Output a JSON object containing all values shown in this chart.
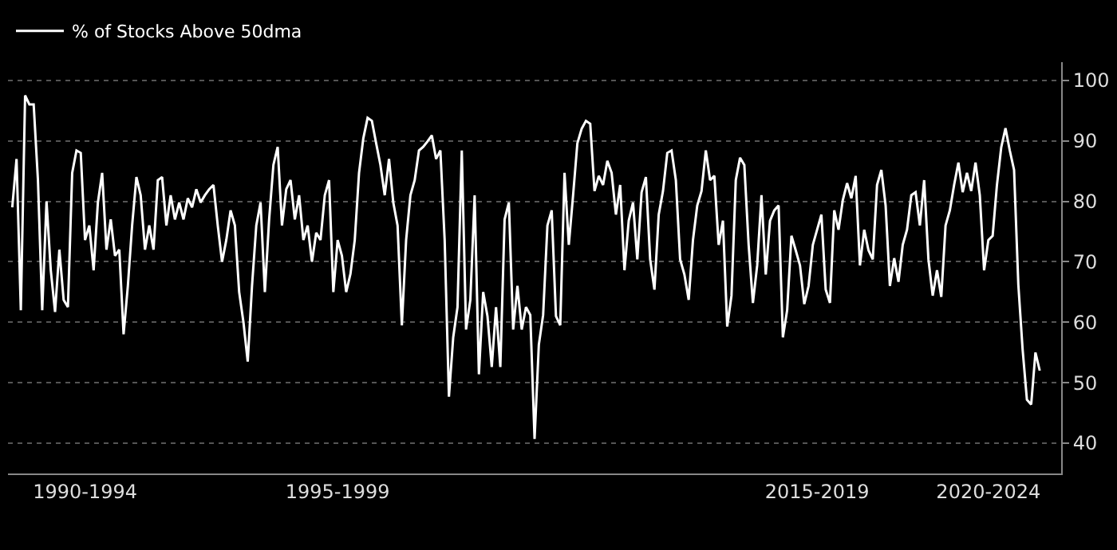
{
  "chart_data": {
    "type": "line",
    "legend": "top left",
    "grid": "y",
    "ylim": [
      35,
      103
    ],
    "yticks": [
      40,
      50,
      60,
      70,
      80,
      90,
      100
    ],
    "categories": [
      null,
      null,
      null,
      null,
      null,
      null,
      null,
      null,
      null,
      null,
      null,
      null,
      null,
      null,
      null,
      null,
      null,
      "1990-1994",
      null,
      null,
      null,
      null,
      null,
      null,
      null,
      null,
      null,
      null,
      null,
      null,
      null,
      null,
      null,
      null,
      null,
      null,
      null,
      null,
      null,
      null,
      null,
      null,
      null,
      null,
      null,
      null,
      null,
      null,
      null,
      null,
      null,
      null,
      null,
      null,
      null,
      null,
      null,
      null,
      null,
      null,
      null,
      null,
      null,
      null,
      null,
      null,
      null,
      null,
      null,
      null,
      null,
      null,
      null,
      null,
      null,
      null,
      "1995-1999",
      null,
      null,
      null,
      null,
      null,
      null,
      null,
      null,
      null,
      null,
      null,
      null,
      null,
      null,
      null,
      null,
      null,
      null,
      null,
      null,
      null,
      null,
      null,
      null,
      null,
      null,
      null,
      null,
      null,
      null,
      null,
      null,
      null,
      null,
      null,
      null,
      null,
      null,
      null,
      null,
      null,
      null,
      null,
      null,
      null,
      null,
      null,
      null,
      null,
      null,
      null,
      null,
      null,
      null,
      null,
      null,
      null,
      null,
      null,
      null,
      null,
      null,
      null,
      null,
      null,
      null,
      null,
      null,
      null,
      null,
      null,
      null,
      null,
      null,
      null,
      null,
      null,
      null,
      null,
      null,
      null,
      null,
      null,
      null,
      null,
      null,
      null,
      null,
      null,
      null,
      null,
      null,
      null,
      null,
      null,
      null,
      null,
      null,
      null,
      null,
      null,
      null,
      null,
      null,
      null,
      null,
      null,
      null,
      null,
      null,
      null,
      "2015-2019",
      null,
      null,
      null,
      null,
      null,
      null,
      null,
      null,
      null,
      null,
      null,
      null,
      null,
      null,
      null,
      null,
      null,
      null,
      null,
      null,
      null,
      null,
      null,
      null,
      null,
      null,
      null,
      null,
      null,
      null,
      null,
      null,
      null,
      null,
      null,
      null,
      null,
      null,
      null,
      "2020-2024",
      null,
      null,
      null,
      null,
      null,
      null,
      null,
      null,
      null,
      null,
      null,
      null
    ],
    "series": [
      {
        "name": "% of Stocks Above 50dma",
        "color": "#ffffff",
        "values": [
          79,
          87,
          62,
          97.5,
          96,
          96,
          83.5,
          62,
          80,
          68.6,
          61.7,
          72,
          63.7,
          62.5,
          84.7,
          88.4,
          88,
          73.6,
          76,
          68.6,
          79.8,
          84.7,
          72,
          77,
          71,
          72,
          58,
          66,
          76,
          84,
          81,
          72,
          76,
          72,
          83.5,
          84,
          76,
          81,
          77,
          79.8,
          77,
          80.5,
          79,
          82,
          79.8,
          81,
          82,
          82.7,
          76,
          70,
          73.6,
          78.5,
          76,
          65,
          60,
          53.5,
          66,
          76,
          79.8,
          65,
          77,
          86,
          89,
          76,
          82,
          83.5,
          77,
          81,
          73.6,
          76,
          70,
          74.8,
          73.6,
          81,
          83.5,
          65,
          73.6,
          71,
          65,
          68,
          73.6,
          84.7,
          90.4,
          93.8,
          93.3,
          89.6,
          86,
          81,
          87,
          79.8,
          76,
          59.5,
          73.6,
          81,
          83.5,
          88.4,
          89,
          89.9,
          90.9,
          87,
          88.4,
          73.6,
          47.7,
          57.5,
          62.5,
          88.4,
          58.8,
          63.7,
          81,
          51.4,
          65,
          61,
          52.6,
          62.5,
          52.6,
          77,
          79.8,
          58.8,
          66,
          58.8,
          62.5,
          61.2,
          40.7,
          56.3,
          61.2,
          76,
          78.5,
          61,
          59.5,
          84.7,
          72.8,
          81,
          89.6,
          92,
          93.3,
          92.8,
          81.7,
          84.2,
          82.7,
          86.7,
          84.7,
          77.8,
          82.7,
          68.6,
          76.8,
          79.8,
          70.4,
          81.5,
          84,
          70.4,
          65.4,
          77.8,
          81.7,
          88,
          88.4,
          83.5,
          70.4,
          67.9,
          63.7,
          73.6,
          79.3,
          81.7,
          88.4,
          83.5,
          84.2,
          72.8,
          76.8,
          59.3,
          64.4,
          83.5,
          87.2,
          86,
          72.8,
          63.2,
          69.4,
          81,
          67.9,
          76.8,
          78.5,
          79.3,
          57.5,
          62,
          74.3,
          71.9,
          69.4,
          63,
          66,
          72.8,
          75.3,
          77.8,
          65.4,
          63.2,
          78.5,
          75.3,
          80.2,
          83,
          80.5,
          84.2,
          69.4,
          75.3,
          71.9,
          70.4,
          82.7,
          85.2,
          79.3,
          66,
          70.6,
          66.7,
          72.8,
          75.3,
          81,
          81.5,
          76,
          83.5,
          70.4,
          64.4,
          68.6,
          64.2,
          76,
          78.5,
          82.7,
          86.4,
          81.5,
          84.7,
          81.7,
          86.4,
          81,
          68.6,
          73.6,
          74.3,
          82.7,
          88.9,
          92.1,
          88.4,
          85.2,
          66.2,
          55.5,
          47.2,
          46.4,
          55,
          52
        ]
      }
    ]
  }
}
